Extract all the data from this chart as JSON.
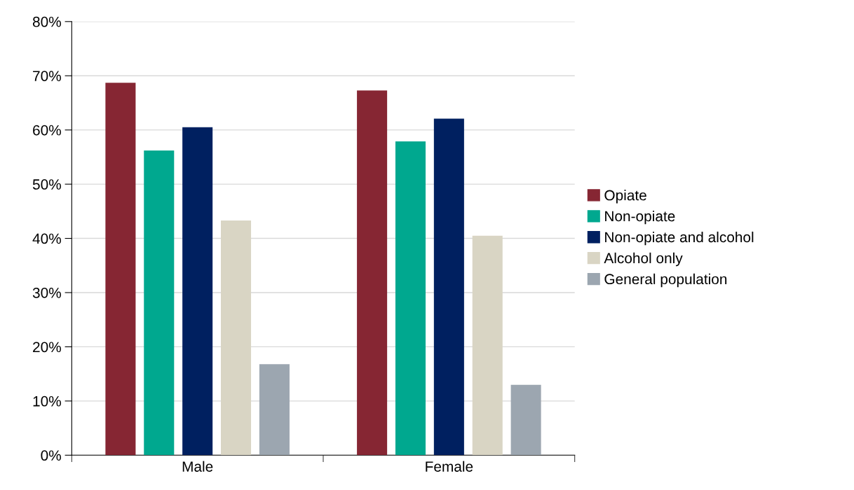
{
  "chart_data": {
    "type": "bar",
    "categories": [
      "Male",
      "Female"
    ],
    "series": [
      {
        "name": "Opiate",
        "color": "#862633",
        "values": [
          68.7,
          67.3
        ]
      },
      {
        "name": "Non-opiate",
        "color": "#00a88f",
        "values": [
          56.2,
          57.9
        ]
      },
      {
        "name": "Non-opiate and alcohol",
        "color": "#002060",
        "values": [
          60.5,
          62.1
        ]
      },
      {
        "name": "Alcohol only",
        "color": "#d9d5c4",
        "values": [
          43.3,
          40.5
        ]
      },
      {
        "name": "General population",
        "color": "#9ca6b0",
        "values": [
          16.8,
          13.0
        ]
      }
    ],
    "ylim": [
      0,
      80
    ],
    "yticks": [
      {
        "value": 0,
        "label": "0%"
      },
      {
        "value": 10,
        "label": "10%"
      },
      {
        "value": 20,
        "label": "20%"
      },
      {
        "value": 30,
        "label": "30%"
      },
      {
        "value": 40,
        "label": "40%"
      },
      {
        "value": 50,
        "label": "50%"
      },
      {
        "value": 60,
        "label": "60%"
      },
      {
        "value": 70,
        "label": "70%"
      },
      {
        "value": 80,
        "label": "80%"
      }
    ],
    "grid": "y",
    "legend": "right"
  }
}
